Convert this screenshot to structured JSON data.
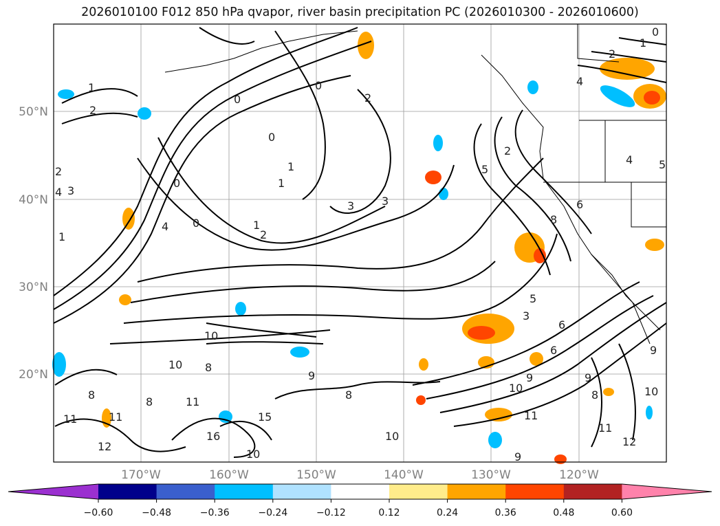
{
  "title": "2026010100 F012 850 hPa qvapor, river basin precipitation PC (2026010300 - 2026010600)",
  "map": {
    "lat_labels": [
      "50°N",
      "40°N",
      "30°N",
      "20°N"
    ],
    "lon_labels": [
      "170°W",
      "160°W",
      "150°W",
      "140°W",
      "130°W",
      "120°W"
    ],
    "contour_labels": [
      "1",
      "2",
      "0",
      "3",
      "4",
      "5",
      "6",
      "8",
      "10",
      "11",
      "12",
      "9",
      "15",
      "16"
    ]
  },
  "colorbar": {
    "ticks": [
      "−0.60",
      "−0.48",
      "−0.36",
      "−0.24",
      "−0.12",
      "0.12",
      "0.24",
      "0.36",
      "0.48",
      "0.60"
    ],
    "colors": [
      "#9b30d0",
      "#00008b",
      "#3a5fcd",
      "#00bfff",
      "#b0e2ff",
      "#ffffff",
      "#ffec8b",
      "#ffa500",
      "#ff4500",
      "#b22222",
      "#ff82ab"
    ]
  }
}
